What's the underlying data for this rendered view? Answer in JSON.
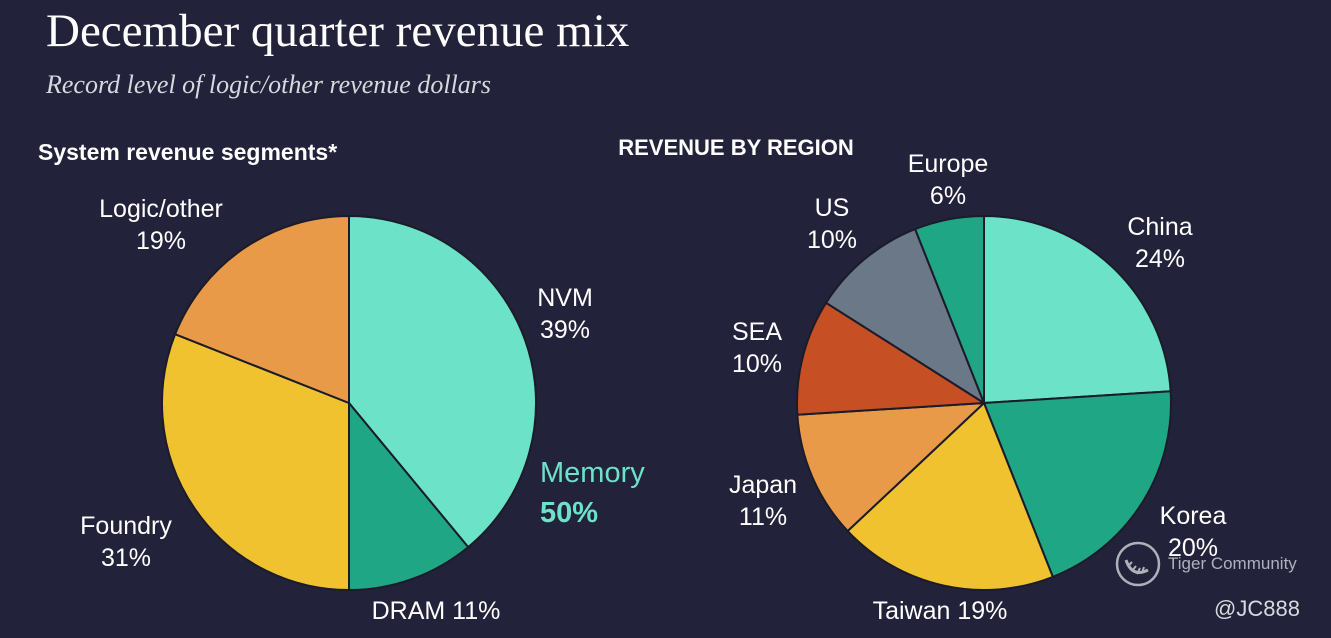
{
  "title": "December quarter revenue mix",
  "subtitle": "Record level of logic/other revenue dollars",
  "chart_data": [
    {
      "type": "pie",
      "title": "System revenue segments*",
      "slices": [
        {
          "name": "NVM",
          "value": 39,
          "label": "39%",
          "color": "#6ce3c9"
        },
        {
          "name": "DRAM",
          "value": 11,
          "label": "11%",
          "color": "#1fa685"
        },
        {
          "name": "Foundry",
          "value": 31,
          "label": "31%",
          "color": "#f0c22f"
        },
        {
          "name": "Logic/other",
          "value": 19,
          "label": "19%",
          "color": "#e89a48"
        }
      ],
      "annotation": {
        "label": "Memory",
        "value": "50%",
        "color": "#6ce3c9"
      }
    },
    {
      "type": "pie",
      "title": "REVENUE BY REGION",
      "slices": [
        {
          "name": "China",
          "value": 24,
          "label": "24%",
          "color": "#6ce3c9"
        },
        {
          "name": "Korea",
          "value": 20,
          "label": "20%",
          "color": "#1fa685"
        },
        {
          "name": "Taiwan",
          "value": 19,
          "label": "19%",
          "color": "#f0c22f"
        },
        {
          "name": "Japan",
          "value": 11,
          "label": "11%",
          "color": "#e89a48"
        },
        {
          "name": "SEA",
          "value": 10,
          "label": "10%",
          "color": "#c64f24"
        },
        {
          "name": "US",
          "value": 10,
          "label": "10%",
          "color": "#6a7888"
        },
        {
          "name": "Europe",
          "value": 6,
          "label": "6%",
          "color": "#1fa685"
        }
      ]
    }
  ],
  "watermark": {
    "text": "Tiger Community"
  },
  "handle": "@JC888"
}
